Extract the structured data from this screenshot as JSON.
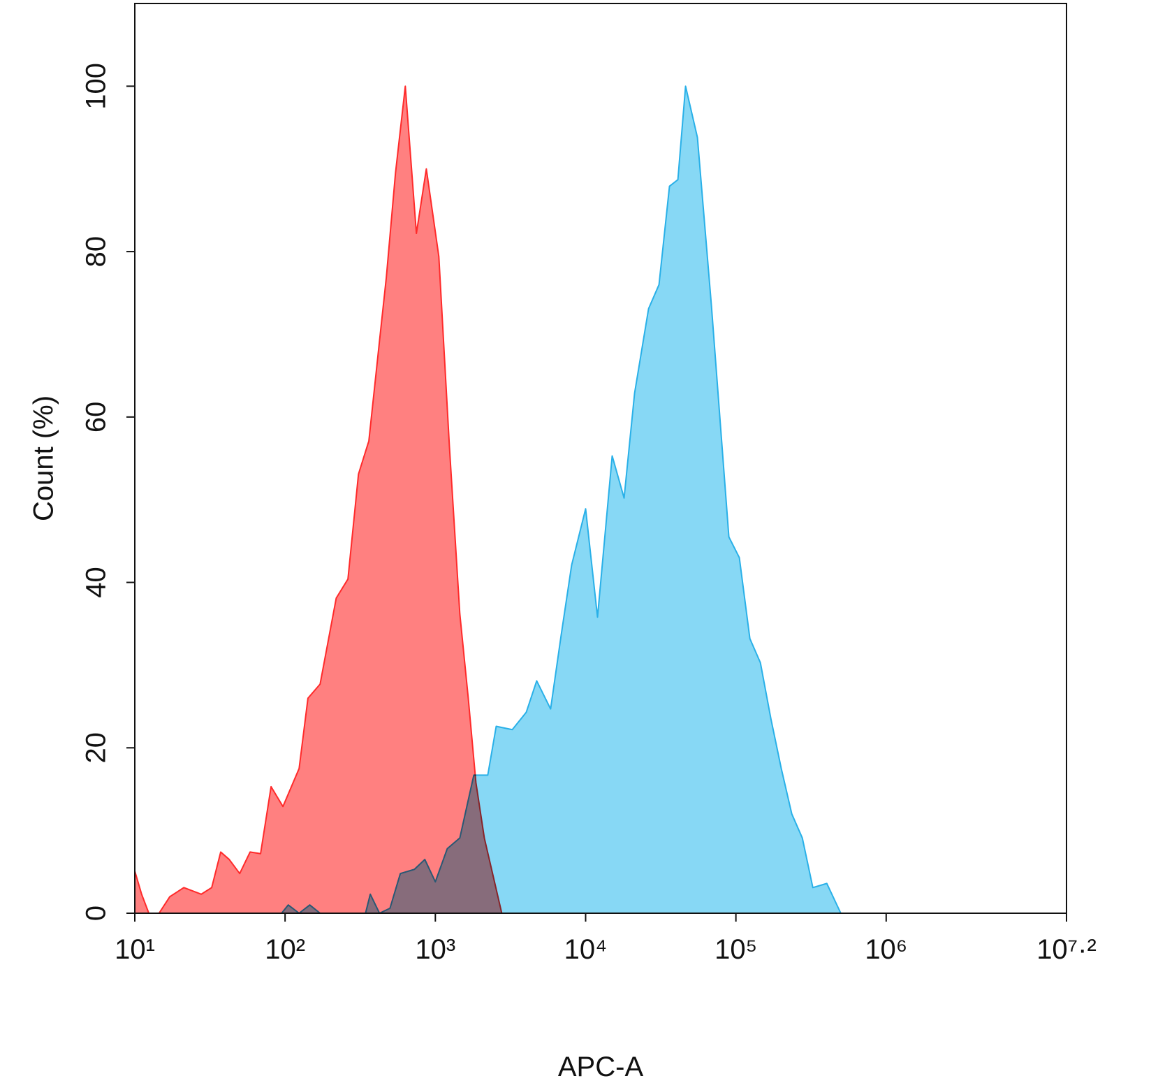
{
  "chart_data": {
    "type": "area",
    "x_label": "APC-A",
    "y_label": "Count (%)",
    "x_log": true,
    "xlim": [
      10,
      15848932
    ],
    "ylim": [
      0,
      110
    ],
    "xticks": [
      {
        "value": 10,
        "label": "10¹"
      },
      {
        "value": 100,
        "label": "10²"
      },
      {
        "value": 1000,
        "label": "10³"
      },
      {
        "value": 10000,
        "label": "10⁴"
      },
      {
        "value": 100000,
        "label": "10⁵"
      },
      {
        "value": 1000000,
        "label": "10⁶"
      },
      {
        "value": 15848932,
        "label": "10⁷·²"
      }
    ],
    "yticks": [
      0,
      20,
      40,
      60,
      80,
      100
    ],
    "series": [
      {
        "color": "#29b0e8",
        "fill": "#87d8f5",
        "x": [
          94.8,
          105,
          124,
          146,
          171,
          343,
          369,
          425,
          499,
          585,
          725,
          851,
          1000,
          1200,
          1455,
          1803,
          2233,
          2541,
          3251,
          4027,
          4725,
          5848,
          6871,
          8072,
          10000,
          12000,
          15020,
          18030,
          21180,
          26240,
          30780,
          36140,
          41110,
          46240,
          55460,
          68710,
          89790,
          105400,
          123900,
          145500,
          171000,
          200400,
          235500,
          276700,
          325100,
          402700,
          498900
        ],
        "values": [
          0,
          1,
          0,
          1,
          0,
          0,
          2.3,
          0,
          0.6,
          4.8,
          5.3,
          6.5,
          3.8,
          7.8,
          9.1,
          16.7,
          16.7,
          22.6,
          22.2,
          24.3,
          28.1,
          24.7,
          33.6,
          42.1,
          48.9,
          35.8,
          55.3,
          50.2,
          62.9,
          73.1,
          76,
          87.9,
          88.7,
          100,
          93.8,
          73.5,
          45.5,
          43,
          33.2,
          30.3,
          23.5,
          17.5,
          12,
          9.1,
          3.1,
          3.6,
          0
        ]
      },
      {
        "color": "#ff2a2a",
        "fill": "#ff8080",
        "x": [
          10,
          11.1,
          12.4,
          14.5,
          17.1,
          21.2,
          27.7,
          32.5,
          37.3,
          42.5,
          49.9,
          58.5,
          68.7,
          80.7,
          96.8,
          124,
          142,
          171,
          219,
          262,
          308,
          361,
          425,
          472,
          543,
          631,
          748,
          871,
          1055,
          1240,
          1455,
          1656,
          1862,
          2118,
          2767
        ],
        "values": [
          5.1,
          2.3,
          0,
          0,
          2,
          3.1,
          2.3,
          3.1,
          7.4,
          6.5,
          4.8,
          7.4,
          7.2,
          15.3,
          12.9,
          17.5,
          26,
          27.7,
          38.1,
          40.4,
          53.1,
          57.1,
          69.2,
          76.9,
          89.5,
          100,
          82.2,
          90,
          79.4,
          56.5,
          36.2,
          26,
          15.8,
          9.1,
          0
        ]
      }
    ]
  }
}
